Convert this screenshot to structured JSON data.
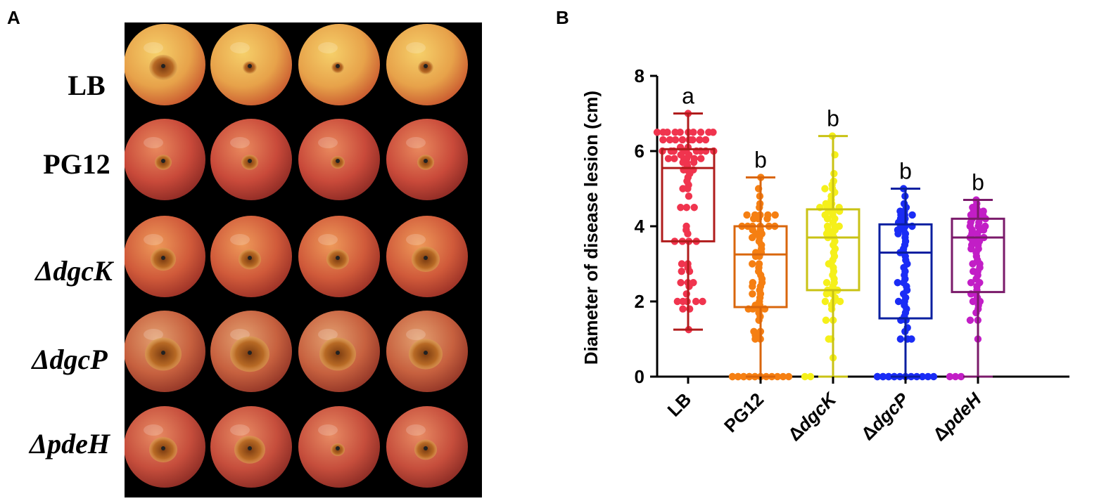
{
  "panels": {
    "a_label": "A",
    "b_label": "B"
  },
  "photo_panel": {
    "row_labels": [
      "LB",
      "PG12",
      "ΔdgcK",
      "ΔdgcP",
      "ΔpdeH"
    ],
    "apples_per_row": 4,
    "background": "#000000"
  },
  "chart_data": {
    "type": "box-scatter",
    "ylabel": "Diameter of disease lesion (cm)",
    "xlabel": "",
    "ylim": [
      0,
      8
    ],
    "yticks": [
      0,
      2,
      4,
      6,
      8
    ],
    "categories": [
      "LB",
      "PG12",
      "ΔdgcK",
      "ΔdgcP",
      "ΔpdeH"
    ],
    "significance_letters": [
      "a",
      "b",
      "b",
      "b",
      "b"
    ],
    "colors": {
      "box": [
        "#b01c1c",
        "#d9660c",
        "#c9c214",
        "#0a1fa0",
        "#7a1a6a"
      ],
      "points": [
        "#f0344e",
        "#f57f12",
        "#f5f01a",
        "#1a2cf5",
        "#c21ec6"
      ]
    },
    "boxes": [
      {
        "min": 1.25,
        "q1": 3.6,
        "median": 5.55,
        "q3": 6.05,
        "max": 7.0
      },
      {
        "min": 0.0,
        "q1": 1.85,
        "median": 3.25,
        "q3": 4.0,
        "max": 5.3
      },
      {
        "min": 0.0,
        "q1": 2.3,
        "median": 3.7,
        "q3": 4.45,
        "max": 6.4
      },
      {
        "min": 0.0,
        "q1": 1.55,
        "median": 3.3,
        "q3": 4.05,
        "max": 5.0
      },
      {
        "min": 0.0,
        "q1": 2.25,
        "median": 3.7,
        "q3": 4.2,
        "max": 4.7
      }
    ],
    "points": [
      [
        7.0,
        6.5,
        6.5,
        6.5,
        6.5,
        6.5,
        6.5,
        6.5,
        6.5,
        6.5,
        6.5,
        6.3,
        6.3,
        6.3,
        6.3,
        6.3,
        6.3,
        6.3,
        6.3,
        6.1,
        6.1,
        6.0,
        6.0,
        6.0,
        6.0,
        6.0,
        6.0,
        6.0,
        6.0,
        6.0,
        5.9,
        5.9,
        5.8,
        5.8,
        5.8,
        5.8,
        5.8,
        5.8,
        5.7,
        5.7,
        5.7,
        5.6,
        5.5,
        5.5,
        5.5,
        5.4,
        5.3,
        5.2,
        5.1,
        5.0,
        5.0,
        4.8,
        4.5,
        4.5,
        4.5,
        4.0,
        3.9,
        3.8,
        3.6,
        3.6,
        3.6,
        3.6,
        3.0,
        3.0,
        2.9,
        2.8,
        2.8,
        2.5,
        2.5,
        2.5,
        2.4,
        2.2,
        2.0,
        2.0,
        2.0,
        2.0,
        2.0,
        1.8,
        1.8,
        1.25
      ],
      [
        5.3,
        5.0,
        4.8,
        4.6,
        4.5,
        4.3,
        4.3,
        4.3,
        4.3,
        4.3,
        4.2,
        4.2,
        4.2,
        4.0,
        4.0,
        4.0,
        4.0,
        4.0,
        4.0,
        3.9,
        3.9,
        3.8,
        3.8,
        3.7,
        3.7,
        3.6,
        3.5,
        3.4,
        3.3,
        3.3,
        3.2,
        3.2,
        3.0,
        3.0,
        2.9,
        2.8,
        2.7,
        2.6,
        2.5,
        2.5,
        2.4,
        2.4,
        2.3,
        2.2,
        2.2,
        2.1,
        2.0,
        1.9,
        1.9,
        1.8,
        1.8,
        1.8,
        1.8,
        1.7,
        1.6,
        1.5,
        1.2,
        1.2,
        1.1,
        1.1,
        1.0,
        1.0,
        0.0,
        0.0,
        0.0,
        0.0,
        0.0,
        0.0,
        0.0,
        0.0,
        0.0,
        0.0,
        0.0,
        0.0,
        0.0,
        0.0,
        0.0,
        0.0
      ],
      [
        6.4,
        5.9,
        5.4,
        5.2,
        5.1,
        5.0,
        5.0,
        4.9,
        4.8,
        4.7,
        4.6,
        4.6,
        4.5,
        4.5,
        4.5,
        4.5,
        4.4,
        4.4,
        4.4,
        4.3,
        4.3,
        4.2,
        4.2,
        4.1,
        4.0,
        4.0,
        4.0,
        3.9,
        3.9,
        3.8,
        3.8,
        3.7,
        3.7,
        3.6,
        3.5,
        3.4,
        3.3,
        3.2,
        3.1,
        3.0,
        3.0,
        2.9,
        2.8,
        2.7,
        2.6,
        2.5,
        2.5,
        2.4,
        2.3,
        2.3,
        2.3,
        2.2,
        2.2,
        2.1,
        2.0,
        2.0,
        2.0,
        1.9,
        1.8,
        1.5,
        1.5,
        1.0,
        1.0,
        0.5,
        0.0,
        0.0
      ],
      [
        5.0,
        4.8,
        4.6,
        4.5,
        4.4,
        4.4,
        4.3,
        4.3,
        4.3,
        4.2,
        4.2,
        4.1,
        4.1,
        4.0,
        4.0,
        4.0,
        3.9,
        3.9,
        3.8,
        3.8,
        3.7,
        3.6,
        3.5,
        3.4,
        3.3,
        3.3,
        3.2,
        3.1,
        3.0,
        2.9,
        2.8,
        2.7,
        2.6,
        2.5,
        2.5,
        2.4,
        2.3,
        2.2,
        2.1,
        2.0,
        2.0,
        1.9,
        1.8,
        1.7,
        1.6,
        1.5,
        1.5,
        1.3,
        1.2,
        1.0,
        1.0,
        1.0,
        0.0,
        0.0,
        0.0,
        0.0,
        0.0,
        0.0,
        0.0,
        0.0,
        0.0,
        0.0,
        0.0,
        0.0,
        0.0,
        0.0,
        0.0
      ],
      [
        4.7,
        4.6,
        4.5,
        4.5,
        4.4,
        4.4,
        4.4,
        4.3,
        4.3,
        4.3,
        4.2,
        4.2,
        4.2,
        4.1,
        4.1,
        4.0,
        4.0,
        4.0,
        3.9,
        3.9,
        3.9,
        3.8,
        3.8,
        3.7,
        3.7,
        3.7,
        3.6,
        3.6,
        3.5,
        3.5,
        3.4,
        3.4,
        3.3,
        3.2,
        3.1,
        3.0,
        3.0,
        2.9,
        2.8,
        2.8,
        2.7,
        2.6,
        2.5,
        2.5,
        2.4,
        2.3,
        2.2,
        2.2,
        2.1,
        2.0,
        2.0,
        1.9,
        1.8,
        1.7,
        1.5,
        1.5,
        1.0,
        0.0,
        0.0,
        0.0
      ]
    ],
    "grid": false,
    "legend": "none"
  }
}
